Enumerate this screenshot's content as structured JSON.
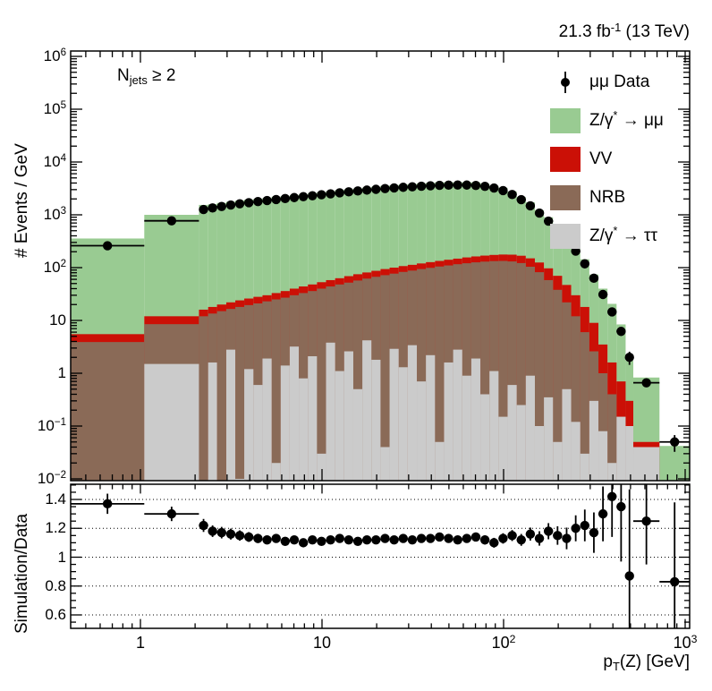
{
  "header": {
    "lumi_segs": [
      {
        "t": "21.3 fb"
      },
      {
        "sup": "-1"
      },
      {
        "t": " (13 TeV)"
      }
    ]
  },
  "plot": {
    "njets_segs": [
      {
        "t": "N"
      },
      {
        "sub": "jets"
      },
      {
        "t": " ≥ 2"
      }
    ],
    "y_title": "# Events / GeV",
    "ratio_y_title": "Simulation/Data",
    "x_title_segs": [
      {
        "t": "p"
      },
      {
        "sub": "T"
      },
      {
        "t": "(Z) [GeV]"
      }
    ]
  },
  "legend": {
    "items": [
      {
        "id": "data",
        "type": "marker",
        "color": "#000000",
        "label_segs": [
          {
            "t": "μμ Data"
          }
        ]
      },
      {
        "id": "zmm",
        "type": "box",
        "color": "#99cb92",
        "label_segs": [
          {
            "t": "Z/γ"
          },
          {
            "sup": "*"
          },
          {
            "t": " → μμ"
          }
        ]
      },
      {
        "id": "vv",
        "type": "box",
        "color": "#cb1006",
        "label_segs": [
          {
            "t": "VV"
          }
        ]
      },
      {
        "id": "nrb",
        "type": "box",
        "color": "#8a6a57",
        "label_segs": [
          {
            "t": "NRB"
          }
        ]
      },
      {
        "id": "tautau",
        "type": "box",
        "color": "#cbcbcb",
        "label_segs": [
          {
            "t": "Z/γ"
          },
          {
            "sup": "*"
          },
          {
            "t": " → ττ"
          }
        ]
      }
    ]
  },
  "colors": {
    "zmm": "#99cb92",
    "vv": "#cb1006",
    "nrb": "#8a6a57",
    "tautau": "#cbcbcb",
    "data": "#000000",
    "frame": "#000000"
  },
  "axes": {
    "main_y_ticks": [
      {
        "v": 1000000,
        "segs": [
          {
            "t": "10"
          },
          {
            "sup": "6"
          }
        ]
      },
      {
        "v": 100000,
        "segs": [
          {
            "t": "10"
          },
          {
            "sup": "5"
          }
        ]
      },
      {
        "v": 10000,
        "segs": [
          {
            "t": "10"
          },
          {
            "sup": "4"
          }
        ]
      },
      {
        "v": 1000,
        "segs": [
          {
            "t": "10"
          },
          {
            "sup": "3"
          }
        ]
      },
      {
        "v": 100,
        "segs": [
          {
            "t": "10"
          },
          {
            "sup": "2"
          }
        ]
      },
      {
        "v": 10,
        "segs": [
          {
            "t": "10"
          }
        ]
      },
      {
        "v": 1,
        "segs": [
          {
            "t": "1"
          }
        ]
      },
      {
        "v": 0.1,
        "segs": [
          {
            "t": "10"
          },
          {
            "sup": "−1"
          }
        ]
      },
      {
        "v": 0.01,
        "segs": [
          {
            "t": "10"
          },
          {
            "sup": "−2"
          }
        ]
      }
    ],
    "x_ticks": [
      {
        "v": 1,
        "segs": [
          {
            "t": "1"
          }
        ]
      },
      {
        "v": 10,
        "segs": [
          {
            "t": "10"
          }
        ]
      },
      {
        "v": 100,
        "segs": [
          {
            "t": "10"
          },
          {
            "sup": "2"
          }
        ]
      },
      {
        "v": 1000,
        "segs": [
          {
            "t": "10"
          },
          {
            "sup": "3"
          }
        ]
      }
    ],
    "ratio_ticks": [
      {
        "v": 1.4,
        "segs": [
          {
            "t": "1.4"
          }
        ]
      },
      {
        "v": 1.2,
        "segs": [
          {
            "t": "1.2"
          }
        ]
      },
      {
        "v": 1.0,
        "segs": [
          {
            "t": "1"
          }
        ]
      },
      {
        "v": 0.8,
        "segs": [
          {
            "t": "0.8"
          }
        ]
      },
      {
        "v": 0.6,
        "segs": [
          {
            "t": "0.6"
          }
        ]
      }
    ],
    "x_range": [
      0.413,
      1059
    ],
    "y_range": [
      0.0093,
      1260000
    ],
    "ratio_range": [
      0.507,
      1.505
    ],
    "ratio_gridlines": [
      0.6,
      0.8,
      1.0,
      1.2,
      1.4
    ]
  },
  "chart_data": {
    "type": "stacked-log-histogram-with-ratio",
    "title": "",
    "xlabel": "pT(Z) [GeV]",
    "ylabel": "# Events / GeV",
    "ratio_label": "Simulation/Data",
    "series_order_bottom_to_top": [
      "tautau",
      "nrb_cumulative",
      "vv_cumulative",
      "total_sim"
    ],
    "bin_edges": [
      0.413,
      1.05,
      2.1,
      2.36,
      2.64,
      2.97,
      3.33,
      3.73,
      4.19,
      4.7,
      5.28,
      5.92,
      6.64,
      7.45,
      8.36,
      9.38,
      10.52,
      11.81,
      13.25,
      14.87,
      16.68,
      18.71,
      21.0,
      23.56,
      26.44,
      29.66,
      33.29,
      37.34,
      41.9,
      47.0,
      52.75,
      59.2,
      66.4,
      74.5,
      83.6,
      93.8,
      105.2,
      118.1,
      132.5,
      148.7,
      166.8,
      187.1,
      210.0,
      235.6,
      264.4,
      296.6,
      332.9,
      373.4,
      419.0,
      470.0,
      518,
      722,
      1060
    ],
    "total_sim": [
      356,
      1000,
      1540,
      1590,
      1680,
      1770,
      1860,
      1940,
      2010,
      2080,
      2200,
      2250,
      2370,
      2430,
      2580,
      2660,
      2800,
      2950,
      3050,
      3140,
      3290,
      3400,
      3550,
      3620,
      3750,
      3810,
      3930,
      4010,
      4120,
      4120,
      4110,
      4140,
      4100,
      3880,
      3540,
      3240,
      2780,
      2170,
      1720,
      1220,
      900,
      590,
      370,
      246,
      144,
      74,
      40,
      20.6,
      8.4,
      1.74,
      0.83,
      0.042
    ],
    "vv_cumulative": [
      5.5,
      12,
      16,
      18,
      20,
      22,
      24,
      26,
      28,
      30,
      33,
      36,
      40,
      44,
      48,
      53,
      58,
      63,
      69,
      75,
      81,
      87,
      94,
      100,
      107,
      113,
      120,
      127,
      134,
      141,
      148,
      156,
      163,
      169,
      174,
      177,
      176,
      168,
      150,
      125,
      97,
      70,
      47,
      30,
      18,
      9,
      3.5,
      1.6,
      0.7,
      0.3,
      0.05,
      0.008
    ],
    "nrb_cumulative": [
      3.9,
      8.5,
      12,
      13.5,
      15,
      16.5,
      18,
      19.5,
      21,
      23,
      25,
      27,
      30,
      33,
      36,
      40,
      44,
      48,
      52,
      57,
      62,
      67,
      72,
      77,
      83,
      88,
      94,
      99,
      105,
      110,
      116,
      121,
      126,
      130,
      133,
      134,
      131,
      122,
      104,
      82,
      58,
      38,
      22,
      12,
      6,
      2.6,
      1.0,
      0.4,
      0.15,
      0.06,
      0.03,
      0.006
    ],
    "tautau": [
      0,
      1.5,
      0,
      1.6,
      0,
      2.8,
      0.01,
      1.2,
      0.6,
      1.9,
      0.02,
      1.4,
      3.2,
      0.8,
      2.1,
      0.03,
      3.8,
      1.1,
      2.6,
      0.5,
      4.2,
      1.8,
      0.04,
      2.9,
      1.3,
      3.4,
      0.7,
      2.2,
      0.05,
      1.6,
      2.8,
      0.9,
      1.9,
      0.4,
      1.1,
      0.15,
      0.6,
      0.25,
      0.9,
      0.1,
      0.35,
      0.05,
      0.5,
      0.12,
      0.03,
      0.3,
      0.08,
      0.02,
      0.15,
      0.1,
      0.04,
      0
    ],
    "data": [
      260,
      770,
      1260,
      1350,
      1440,
      1530,
      1620,
      1700,
      1780,
      1860,
      1950,
      2030,
      2120,
      2210,
      2300,
      2400,
      2500,
      2610,
      2720,
      2830,
      2940,
      3040,
      3140,
      3230,
      3320,
      3400,
      3480,
      3550,
      3610,
      3650,
      3670,
      3660,
      3600,
      3460,
      3220,
      2870,
      2420,
      1940,
      1480,
      1080,
      760,
      510,
      330,
      205,
      118,
      63,
      31,
      14.5,
      6.2,
      2.0,
      0.66,
      0.05
    ],
    "data_err_rel": [
      0.05,
      0.03,
      0.02,
      0.02,
      0.015,
      0.015,
      0.012,
      0.012,
      0.012,
      0.01,
      0.01,
      0.01,
      0.01,
      0.01,
      0.01,
      0.01,
      0.008,
      0.008,
      0.008,
      0.008,
      0.008,
      0.008,
      0.008,
      0.008,
      0.008,
      0.008,
      0.008,
      0.008,
      0.008,
      0.008,
      0.008,
      0.008,
      0.009,
      0.009,
      0.01,
      0.01,
      0.011,
      0.012,
      0.014,
      0.016,
      0.019,
      0.023,
      0.028,
      0.035,
      0.045,
      0.06,
      0.08,
      0.11,
      0.17,
      0.28,
      0.12,
      0.35
    ],
    "ratio": [
      1.37,
      1.3,
      1.22,
      1.18,
      1.17,
      1.16,
      1.15,
      1.14,
      1.13,
      1.12,
      1.13,
      1.11,
      1.12,
      1.1,
      1.12,
      1.11,
      1.12,
      1.13,
      1.12,
      1.11,
      1.12,
      1.12,
      1.13,
      1.12,
      1.13,
      1.12,
      1.13,
      1.13,
      1.14,
      1.13,
      1.12,
      1.13,
      1.14,
      1.12,
      1.1,
      1.13,
      1.15,
      1.12,
      1.16,
      1.13,
      1.18,
      1.15,
      1.13,
      1.2,
      1.22,
      1.17,
      1.3,
      1.42,
      1.35,
      0.87,
      1.25,
      0.83
    ],
    "ratio_err": [
      0.07,
      0.05,
      0.045,
      0.04,
      0.04,
      0.038,
      0.036,
      0.034,
      0.032,
      0.031,
      0.03,
      0.03,
      0.029,
      0.029,
      0.028,
      0.028,
      0.028,
      0.027,
      0.027,
      0.027,
      0.027,
      0.027,
      0.027,
      0.027,
      0.027,
      0.027,
      0.028,
      0.028,
      0.028,
      0.029,
      0.03,
      0.03,
      0.031,
      0.032,
      0.034,
      0.036,
      0.038,
      0.041,
      0.045,
      0.05,
      0.056,
      0.064,
      0.075,
      0.09,
      0.11,
      0.14,
      0.19,
      0.28,
      0.38,
      0.6,
      0.3,
      0.55
    ]
  }
}
